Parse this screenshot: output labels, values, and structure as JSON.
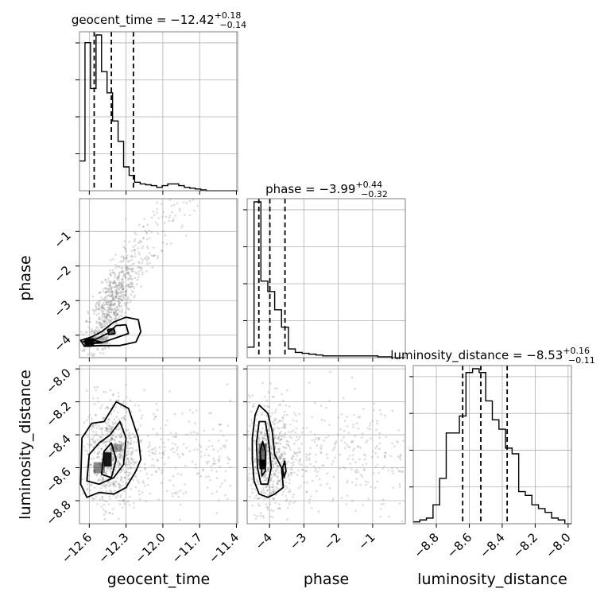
{
  "chart_data": {
    "type": "corner",
    "params": [
      "geocent_time",
      "phase",
      "luminosity_distance"
    ],
    "titles": [
      {
        "param": "geocent_time",
        "prefix": "geocent_time = ",
        "median": "−12.42",
        "plus": "+0.18",
        "minus": "−0.14"
      },
      {
        "param": "phase",
        "prefix": "phase = ",
        "median": "−3.99",
        "plus": "+0.44",
        "minus": "−0.32"
      },
      {
        "param": "luminosity_distance",
        "prefix": "luminosity_distance = ",
        "median": "−8.53",
        "plus": "+0.16",
        "minus": "−0.11"
      }
    ],
    "xlabels": [
      "geocent_time",
      "phase",
      "luminosity_distance"
    ],
    "ylabels": [
      "phase",
      "luminosity_distance"
    ],
    "ranges": {
      "geocent_time": [
        -12.68,
        -11.39
      ],
      "phase": [
        -4.65,
        -0.05
      ],
      "luminosity_distance": [
        -8.94,
        -7.98
      ]
    },
    "ticks": {
      "geocent_time": [
        -12.6,
        -12.3,
        -12.0,
        -11.7,
        -11.4
      ],
      "phase": [
        -4,
        -3,
        -2,
        -1
      ],
      "luminosity_distance": [
        -8.8,
        -8.6,
        -8.4,
        -8.2,
        -8.0
      ]
    },
    "tick_labels": {
      "geocent_time": [
        "−12.6",
        "−12.3",
        "−12.0",
        "−11.7",
        "−11.4"
      ],
      "phase": [
        "−4",
        "−3",
        "−2",
        "−1"
      ],
      "luminosity_distance": [
        "−8.8",
        "−8.6",
        "−8.4",
        "−8.2",
        "−8.0"
      ]
    },
    "histograms": {
      "geocent_time": {
        "edges": [
          -12.68,
          -12.635,
          -12.59,
          -12.545,
          -12.5,
          -12.455,
          -12.41,
          -12.365,
          -12.32,
          -12.275,
          -12.23,
          -12.185,
          -12.14,
          -12.095,
          -12.05,
          -12.005,
          -11.96,
          -11.915,
          -11.87,
          -11.825,
          -11.78,
          -11.735,
          -11.69,
          -11.645,
          -11.6,
          -11.555,
          -11.51,
          -11.465,
          -11.42,
          -11.39
        ],
        "counts": [
          35,
          174,
          120,
          183,
          140,
          115,
          82,
          58,
          28,
          18,
          10,
          8,
          7,
          6,
          4,
          6,
          8,
          8,
          6,
          4,
          3,
          2,
          1,
          0,
          0,
          0,
          0,
          0,
          0
        ]
      },
      "phase": {
        "edges": [
          -4.65,
          -4.45,
          -4.25,
          -4.05,
          -3.85,
          -3.65,
          -3.45,
          -3.25,
          -3.05,
          -2.85,
          -2.65,
          -2.45,
          -2.25,
          -2.05,
          -1.85,
          -1.65,
          -1.45,
          -1.25,
          -1.05,
          -0.85,
          -0.65,
          -0.45,
          -0.25,
          -0.05
        ],
        "counts": [
          12,
          179,
          88,
          76,
          55,
          35,
          10,
          6,
          5,
          4,
          3,
          2,
          2,
          2,
          2,
          2,
          2,
          2,
          2,
          1,
          1,
          0,
          0
        ]
      },
      "luminosity_distance": {
        "edges": [
          -8.94,
          -8.9,
          -8.86,
          -8.82,
          -8.78,
          -8.74,
          -8.7,
          -8.66,
          -8.62,
          -8.58,
          -8.54,
          -8.5,
          -8.46,
          -8.42,
          -8.38,
          -8.34,
          -8.3,
          -8.26,
          -8.22,
          -8.18,
          -8.14,
          -8.1,
          -8.06,
          -8.02,
          -7.98
        ],
        "counts": [
          1,
          2,
          3,
          10,
          24,
          48,
          48,
          57,
          80,
          82,
          80,
          65,
          55,
          50,
          40,
          37,
          17,
          15,
          10,
          8,
          6,
          3,
          2,
          0
        ]
      }
    },
    "quantiles": {
      "geocent_time": [
        -12.56,
        -12.42,
        -12.24
      ],
      "phase": [
        -4.31,
        -3.99,
        -3.55
      ],
      "luminosity_distance": [
        -8.64,
        -8.53,
        -8.37
      ]
    },
    "grid": true,
    "colors": {
      "line": "#000000",
      "points": "#808080",
      "grid": "#b0b0b0"
    }
  }
}
